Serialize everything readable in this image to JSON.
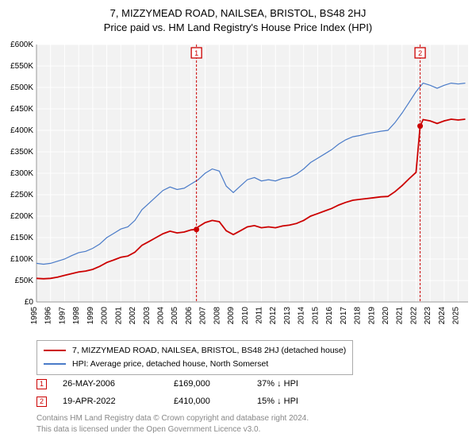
{
  "title_line1": "7, MIZZYMEAD ROAD, NAILSEA, BRISTOL, BS48 2HJ",
  "title_line2": "Price paid vs. HM Land Registry's House Price Index (HPI)",
  "chart": {
    "type": "line",
    "plot_bg": "#f2f2f2",
    "grid_color": "#ffffff",
    "grid_width": 1,
    "axis_fontsize": 10,
    "axis_color": "#000000",
    "x_years": [
      1995,
      1996,
      1997,
      1998,
      1999,
      2000,
      2001,
      2002,
      2003,
      2004,
      2005,
      2006,
      2007,
      2008,
      2009,
      2010,
      2011,
      2012,
      2013,
      2014,
      2015,
      2016,
      2017,
      2018,
      2019,
      2020,
      2021,
      2022,
      2023,
      2024,
      2025
    ],
    "xlim": [
      1995,
      2025.7
    ],
    "y_ticks": [
      0,
      50,
      100,
      150,
      200,
      250,
      300,
      350,
      400,
      450,
      500,
      550,
      600
    ],
    "y_tick_labels": [
      "£0",
      "£50K",
      "£100K",
      "£150K",
      "£200K",
      "£250K",
      "£300K",
      "£350K",
      "£400K",
      "£450K",
      "£500K",
      "£550K",
      "£600K"
    ],
    "ylim": [
      0,
      600
    ],
    "series": [
      {
        "name": "hpi",
        "color": "#4a7bc8",
        "width": 1.2,
        "points": [
          [
            1995,
            90
          ],
          [
            1995.5,
            88
          ],
          [
            1996,
            90
          ],
          [
            1996.5,
            95
          ],
          [
            1997,
            100
          ],
          [
            1997.5,
            108
          ],
          [
            1998,
            115
          ],
          [
            1998.5,
            118
          ],
          [
            1999,
            125
          ],
          [
            1999.5,
            135
          ],
          [
            2000,
            150
          ],
          [
            2000.5,
            160
          ],
          [
            2001,
            170
          ],
          [
            2001.5,
            175
          ],
          [
            2002,
            190
          ],
          [
            2002.5,
            215
          ],
          [
            2003,
            230
          ],
          [
            2003.5,
            245
          ],
          [
            2004,
            260
          ],
          [
            2004.5,
            268
          ],
          [
            2005,
            262
          ],
          [
            2005.5,
            265
          ],
          [
            2006,
            275
          ],
          [
            2006.5,
            285
          ],
          [
            2007,
            300
          ],
          [
            2007.5,
            310
          ],
          [
            2008,
            305
          ],
          [
            2008.5,
            270
          ],
          [
            2009,
            255
          ],
          [
            2009.5,
            270
          ],
          [
            2010,
            285
          ],
          [
            2010.5,
            290
          ],
          [
            2011,
            282
          ],
          [
            2011.5,
            285
          ],
          [
            2012,
            282
          ],
          [
            2012.5,
            288
          ],
          [
            2013,
            290
          ],
          [
            2013.5,
            298
          ],
          [
            2014,
            310
          ],
          [
            2014.5,
            325
          ],
          [
            2015,
            335
          ],
          [
            2015.5,
            345
          ],
          [
            2016,
            355
          ],
          [
            2016.5,
            368
          ],
          [
            2017,
            378
          ],
          [
            2017.5,
            385
          ],
          [
            2018,
            388
          ],
          [
            2018.5,
            392
          ],
          [
            2019,
            395
          ],
          [
            2019.5,
            398
          ],
          [
            2020,
            400
          ],
          [
            2020.5,
            418
          ],
          [
            2021,
            440
          ],
          [
            2021.5,
            465
          ],
          [
            2022,
            490
          ],
          [
            2022.5,
            510
          ],
          [
            2023,
            505
          ],
          [
            2023.5,
            498
          ],
          [
            2024,
            505
          ],
          [
            2024.5,
            510
          ],
          [
            2025,
            508
          ],
          [
            2025.5,
            510
          ]
        ]
      },
      {
        "name": "price_paid",
        "color": "#cc0000",
        "width": 1.8,
        "points": [
          [
            1995,
            55
          ],
          [
            1995.5,
            54
          ],
          [
            1996,
            55
          ],
          [
            1996.5,
            58
          ],
          [
            1997,
            62
          ],
          [
            1997.5,
            66
          ],
          [
            1998,
            70
          ],
          [
            1998.5,
            72
          ],
          [
            1999,
            76
          ],
          [
            1999.5,
            83
          ],
          [
            2000,
            92
          ],
          [
            2000.5,
            98
          ],
          [
            2001,
            104
          ],
          [
            2001.5,
            107
          ],
          [
            2002,
            116
          ],
          [
            2002.5,
            132
          ],
          [
            2003,
            141
          ],
          [
            2003.5,
            150
          ],
          [
            2004,
            159
          ],
          [
            2004.5,
            165
          ],
          [
            2005,
            161
          ],
          [
            2005.5,
            163
          ],
          [
            2006,
            168
          ],
          [
            2006.38,
            169
          ],
          [
            2006.5,
            175
          ],
          [
            2007,
            185
          ],
          [
            2007.5,
            190
          ],
          [
            2008,
            187
          ],
          [
            2008.5,
            166
          ],
          [
            2009,
            157
          ],
          [
            2009.5,
            166
          ],
          [
            2010,
            175
          ],
          [
            2010.5,
            178
          ],
          [
            2011,
            173
          ],
          [
            2011.5,
            175
          ],
          [
            2012,
            173
          ],
          [
            2012.5,
            177
          ],
          [
            2013,
            179
          ],
          [
            2013.5,
            183
          ],
          [
            2014,
            190
          ],
          [
            2014.5,
            200
          ],
          [
            2015,
            206
          ],
          [
            2015.5,
            212
          ],
          [
            2016,
            218
          ],
          [
            2016.5,
            226
          ],
          [
            2017,
            232
          ],
          [
            2017.5,
            237
          ],
          [
            2018,
            239
          ],
          [
            2018.5,
            241
          ],
          [
            2019,
            243
          ],
          [
            2019.5,
            245
          ],
          [
            2020,
            246
          ],
          [
            2020.5,
            257
          ],
          [
            2021,
            271
          ],
          [
            2021.5,
            287
          ],
          [
            2022,
            302
          ],
          [
            2022.29,
            410
          ],
          [
            2022.5,
            425
          ],
          [
            2023,
            422
          ],
          [
            2023.5,
            416
          ],
          [
            2024,
            422
          ],
          [
            2024.5,
            426
          ],
          [
            2025,
            424
          ],
          [
            2025.5,
            426
          ]
        ]
      }
    ],
    "markers": [
      {
        "id": "1",
        "year": 2006.38,
        "value": 169,
        "label_y_top": true
      },
      {
        "id": "2",
        "year": 2022.29,
        "value": 410,
        "label_y_top": true
      }
    ],
    "marker_style": {
      "dash_color": "#cc0000",
      "dash_pattern": "3,2",
      "dot_fill": "#cc0000",
      "dot_radius": 3.5,
      "box_border": "#cc0000",
      "box_text": "#cc0000",
      "box_size": 13,
      "box_fontsize": 9
    }
  },
  "legend": {
    "series1_color": "#cc0000",
    "series1_label": "7, MIZZYMEAD ROAD, NAILSEA, BRISTOL, BS48 2HJ (detached house)",
    "series2_color": "#4a7bc8",
    "series2_label": "HPI: Average price, detached house, North Somerset"
  },
  "annotations": [
    {
      "id": "1",
      "date": "26-MAY-2006",
      "price": "£169,000",
      "hpi_diff": "37% ↓ HPI"
    },
    {
      "id": "2",
      "date": "19-APR-2022",
      "price": "£410,000",
      "hpi_diff": "15% ↓ HPI"
    }
  ],
  "footer_line1": "Contains HM Land Registry data © Crown copyright and database right 2024.",
  "footer_line2": "This data is licensed under the Open Government Licence v3.0."
}
